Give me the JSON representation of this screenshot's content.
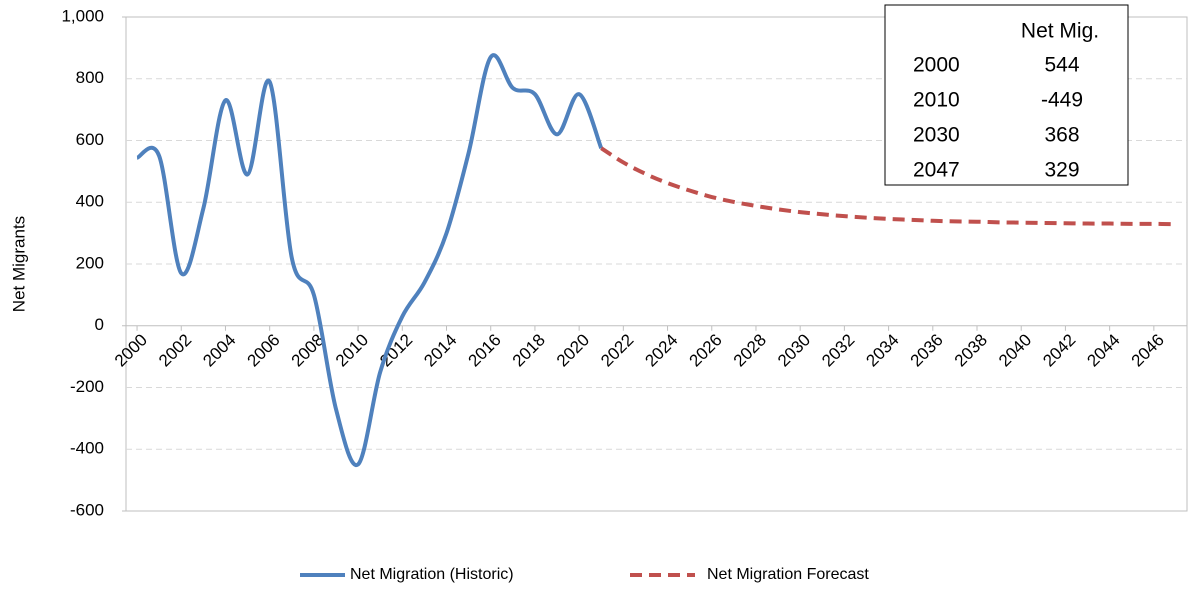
{
  "chart_data": {
    "type": "line",
    "y_label": "Net Migrants",
    "xlim": [
      1999.5,
      2047.5
    ],
    "xticks": [
      2000,
      2002,
      2004,
      2006,
      2008,
      2010,
      2012,
      2014,
      2016,
      2018,
      2020,
      2022,
      2024,
      2026,
      2028,
      2030,
      2032,
      2034,
      2036,
      2038,
      2040,
      2042,
      2044,
      2046
    ],
    "ylim": [
      -600,
      1000
    ],
    "yticks": [
      -600,
      -400,
      -200,
      0,
      200,
      400,
      600,
      800,
      {
        "value": 1000,
        "label": "1,000"
      }
    ],
    "grid": true,
    "legend": "bottom",
    "series": [
      {
        "name": "Net Migration (Historic)",
        "color": "#4f81bd",
        "style": "solid",
        "x": [
          2000,
          2001,
          2002,
          2003,
          2004,
          2005,
          2006,
          2007,
          2008,
          2009,
          2010,
          2011,
          2012,
          2013,
          2014,
          2015,
          2016,
          2017,
          2018,
          2019,
          2020,
          2021
        ],
        "values": [
          544,
          550,
          170,
          380,
          730,
          490,
          790,
          220,
          100,
          -270,
          -449,
          -150,
          30,
          140,
          300,
          560,
          870,
          770,
          750,
          620,
          750,
          575
        ]
      },
      {
        "name": "Net Migration Forecast",
        "color": "#c0504d",
        "style": "dashed",
        "x": [
          2021,
          2022,
          2023,
          2024,
          2025,
          2026,
          2027,
          2028,
          2029,
          2030,
          2031,
          2032,
          2033,
          2034,
          2035,
          2036,
          2037,
          2038,
          2039,
          2040,
          2041,
          2042,
          2043,
          2044,
          2045,
          2046,
          2047
        ],
        "values": [
          575,
          529,
          492,
          462,
          438,
          417,
          401,
          388,
          377,
          368,
          361,
          355,
          350,
          346,
          343,
          340,
          338,
          337,
          335,
          334,
          333,
          332,
          331,
          331,
          330,
          330,
          329
        ]
      }
    ],
    "table": {
      "header": "Net Mig.",
      "rows": [
        [
          2000,
          544
        ],
        [
          2010,
          -449
        ],
        [
          2030,
          368
        ],
        [
          2047,
          329
        ]
      ]
    }
  }
}
